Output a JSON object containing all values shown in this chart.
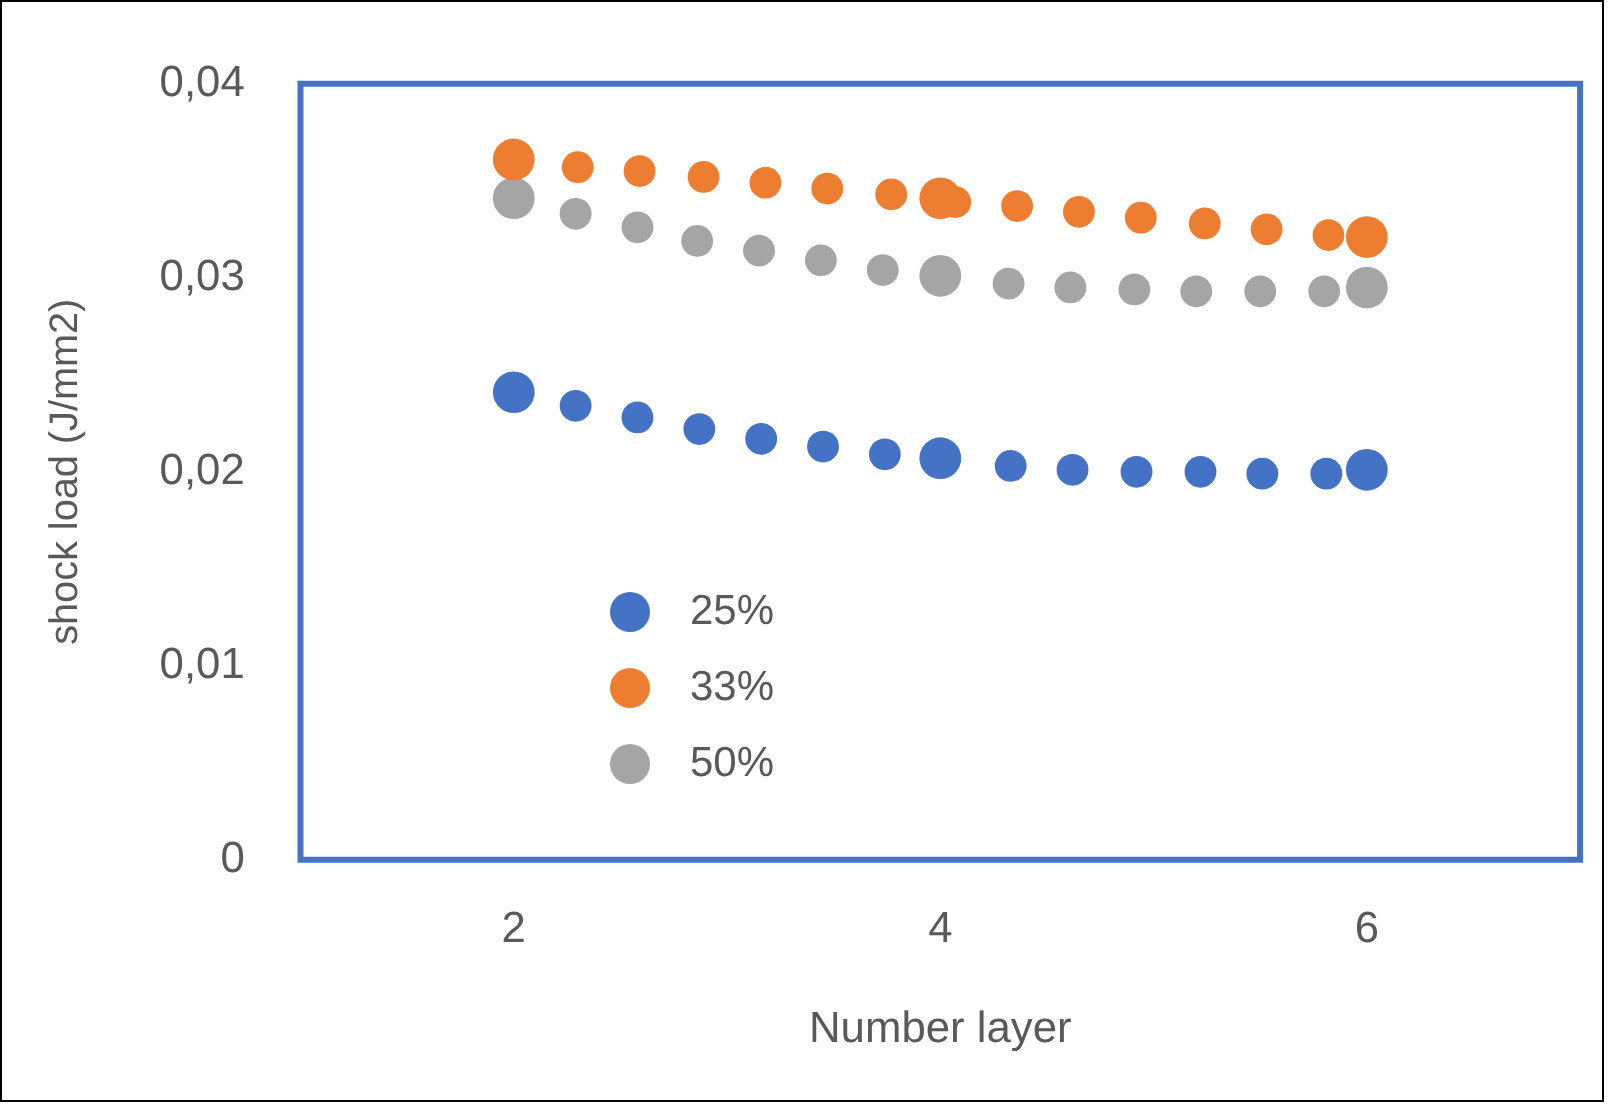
{
  "chart_data": {
    "type": "scatter",
    "xlabel": "Number layer",
    "ylabel": "shock load (J/mm2)",
    "xlim": [
      1,
      7
    ],
    "xticks": [
      2,
      4,
      6
    ],
    "ylim": [
      0,
      0.04
    ],
    "yticks": [
      {
        "value": 0,
        "label": "0"
      },
      {
        "value": 0.01,
        "label": "0,01"
      },
      {
        "value": 0.02,
        "label": "0,02"
      },
      {
        "value": 0.03,
        "label": "0,03"
      },
      {
        "value": 0.04,
        "label": "0,04"
      }
    ],
    "grid": false,
    "legend": "bottom left",
    "marker": "circle",
    "series": [
      {
        "name": "25%",
        "color": "#4472c4",
        "x": [
          2,
          4,
          6
        ],
        "values": [
          0.0241,
          0.0207,
          0.0201
        ]
      },
      {
        "name": "33%",
        "color": "#ed7d31",
        "x": [
          2,
          4,
          6
        ],
        "values": [
          0.0361,
          0.0341,
          0.0321
        ]
      },
      {
        "name": "50%",
        "color": "#a5a5a5",
        "x": [
          2,
          4,
          6
        ],
        "values": [
          0.0341,
          0.0301,
          0.0295
        ]
      },
      {
        "color": "#4472c4",
        "x": [
          2.29,
          2.58,
          2.87,
          3.16,
          3.45,
          3.74,
          4.33,
          4.62,
          4.92,
          5.22,
          5.51,
          5.81
        ],
        "values": [
          0.0234,
          0.0228,
          0.0222,
          0.0217,
          0.0213,
          0.0209,
          0.0203,
          0.0201,
          0.02,
          0.02,
          0.0199,
          0.0199
        ]
      },
      {
        "color": "#ed7d31",
        "x": [
          2.3,
          2.59,
          2.89,
          3.18,
          3.47,
          3.77,
          4.07,
          4.36,
          4.65,
          4.94,
          5.24,
          5.53,
          5.82
        ],
        "values": [
          0.0357,
          0.0355,
          0.0352,
          0.0349,
          0.0346,
          0.0343,
          0.0339,
          0.0337,
          0.0334,
          0.0331,
          0.0328,
          0.0325,
          0.0322
        ]
      },
      {
        "color": "#a5a5a5",
        "x": [
          2.29,
          2.58,
          2.86,
          3.15,
          3.44,
          3.73,
          4.32,
          4.61,
          4.91,
          5.2,
          5.5,
          5.8
        ],
        "values": [
          0.0333,
          0.0326,
          0.0319,
          0.0314,
          0.0309,
          0.0304,
          0.0297,
          0.0295,
          0.0294,
          0.0293,
          0.0293,
          0.0293
        ]
      }
    ]
  }
}
